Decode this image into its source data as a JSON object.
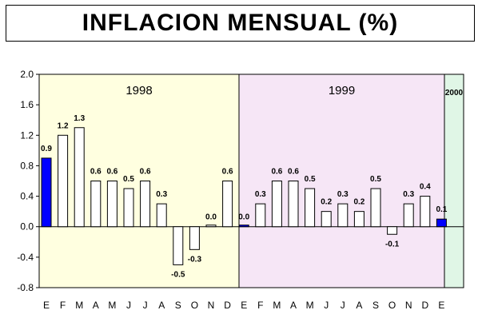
{
  "title": "INFLACION MENSUAL (%)",
  "chart_data": {
    "type": "bar",
    "title": "INFLACION MENSUAL (%)",
    "categories": [
      "E",
      "F",
      "M",
      "A",
      "M",
      "J",
      "J",
      "A",
      "S",
      "O",
      "N",
      "D",
      "E",
      "F",
      "M",
      "A",
      "M",
      "J",
      "J",
      "A",
      "S",
      "O",
      "N",
      "D",
      "E"
    ],
    "values": [
      0.9,
      1.2,
      1.3,
      0.6,
      0.6,
      0.5,
      0.6,
      0.3,
      -0.5,
      -0.3,
      0.0,
      0.6,
      0.0,
      0.3,
      0.6,
      0.6,
      0.5,
      0.2,
      0.3,
      0.2,
      0.5,
      -0.1,
      0.3,
      0.4,
      0.1
    ],
    "value_labels": [
      "0.9",
      "1.2",
      "1.3",
      "0.6",
      "0.6",
      "0.5",
      "0.6",
      "0.3",
      "-0.5",
      "-0.3",
      "0.0",
      "0.6",
      "0.0",
      "0.3",
      "0.6",
      "0.6",
      "0.5",
      "0.2",
      "0.3",
      "0.2",
      "0.5",
      "-0.1",
      "0.3",
      "0.4",
      "0.1"
    ],
    "highlighted": [
      0,
      12,
      24
    ],
    "ylim": [
      -0.8,
      2.0
    ],
    "yticks": [
      "2.0",
      "1.6",
      "1.2",
      "0.8",
      "0.4",
      "0.0",
      "-0.4",
      "-0.8"
    ],
    "ytick_values": [
      2.0,
      1.6,
      1.2,
      0.8,
      0.4,
      0.0,
      -0.4,
      -0.8
    ],
    "xlabel": "",
    "ylabel": "",
    "grid": false,
    "year_groups": [
      {
        "label": "1998",
        "start": 0,
        "end": 11,
        "color": "#ffffe0"
      },
      {
        "label": "1999",
        "start": 12,
        "end": 23,
        "color": "#f6e6f6"
      },
      {
        "label": "2000",
        "start": 24,
        "end": 24,
        "color": "#e0f6e6"
      }
    ],
    "colors": {
      "highlight": "#0000ff",
      "normal": "#ffffff",
      "stroke": "#000000"
    }
  }
}
